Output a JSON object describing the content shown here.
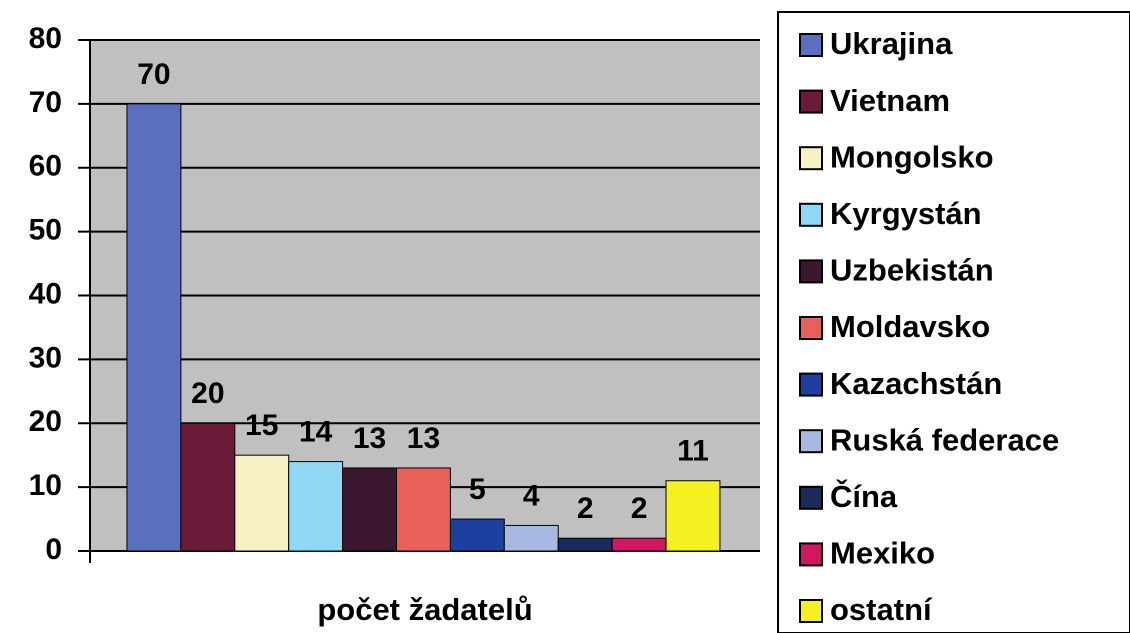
{
  "chart_data": {
    "type": "bar",
    "categories": [
      "počet žadatelů"
    ],
    "series": [
      {
        "name": "Ukrajina",
        "color": "#5b6fbf",
        "values": [
          70
        ]
      },
      {
        "name": "Vietnam",
        "color": "#6b1a3a",
        "values": [
          20
        ]
      },
      {
        "name": "Mongolsko",
        "color": "#f8f1c4",
        "values": [
          15
        ]
      },
      {
        "name": "Kyrgystán",
        "color": "#8fd8f5",
        "values": [
          14
        ]
      },
      {
        "name": "Uzbekistán",
        "color": "#3b1830",
        "values": [
          13
        ]
      },
      {
        "name": "Moldavsko",
        "color": "#e8605a",
        "values": [
          13
        ]
      },
      {
        "name": "Kazachstán",
        "color": "#1c3fa0",
        "values": [
          5
        ]
      },
      {
        "name": "Ruská federace",
        "color": "#a8b8e0",
        "values": [
          4
        ]
      },
      {
        "name": "Čína",
        "color": "#1a2a5a",
        "values": [
          2
        ]
      },
      {
        "name": "Mexiko",
        "color": "#d01860",
        "values": [
          2
        ]
      },
      {
        "name": "ostatní",
        "color": "#f5f020",
        "values": [
          11
        ]
      }
    ],
    "ylim": [
      0,
      80
    ],
    "yticks": [
      0,
      10,
      20,
      30,
      40,
      50,
      60,
      70,
      80
    ],
    "grid": true,
    "legend": "right"
  }
}
